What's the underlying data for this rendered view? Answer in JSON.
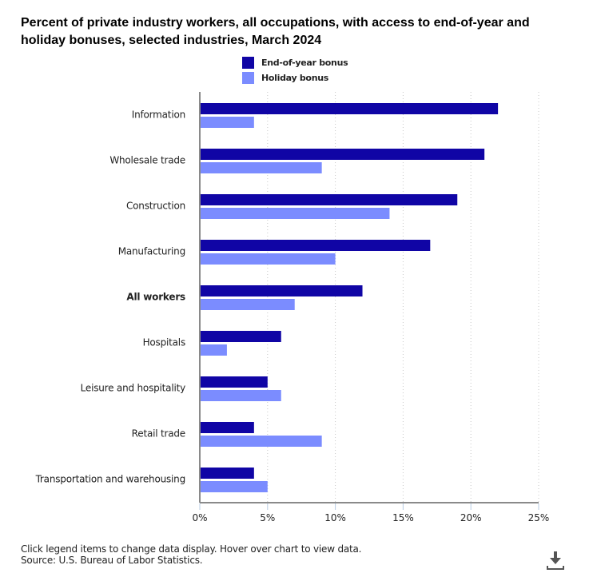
{
  "chart_data": {
    "type": "bar",
    "orientation": "horizontal",
    "title": "Percent of private industry workers, all occupations, with access to end-of-year and holiday bonuses, selected industries, March 2024",
    "categories": [
      "Information",
      "Wholesale trade",
      "Construction",
      "Manufacturing",
      "All workers",
      "Hospitals",
      "Leisure and hospitality",
      "Retail trade",
      "Transportation and warehousing"
    ],
    "bold_categories": [
      "All workers"
    ],
    "series": [
      {
        "name": "End-of-year bonus",
        "color": "#1005a5",
        "values": [
          22,
          21,
          19,
          17,
          12,
          6,
          5,
          4,
          4
        ]
      },
      {
        "name": "Holiday bonus",
        "color": "#7b8cff",
        "values": [
          4,
          9,
          14,
          10,
          7,
          2,
          6,
          9,
          5
        ]
      }
    ],
    "xlabel": "",
    "ylabel": "",
    "xlim": [
      0,
      25
    ],
    "xticks": [
      0,
      5,
      10,
      15,
      20,
      25
    ],
    "xtick_labels": [
      "0%",
      "5%",
      "10%",
      "15%",
      "20%",
      "25%"
    ],
    "grid": true,
    "legend_position": "top-center"
  },
  "footer": {
    "note": "Click legend items to change data display. Hover over chart to view data.",
    "source": "Source: U.S. Bureau of Labor Statistics."
  },
  "icons": {
    "download": "download-icon"
  }
}
